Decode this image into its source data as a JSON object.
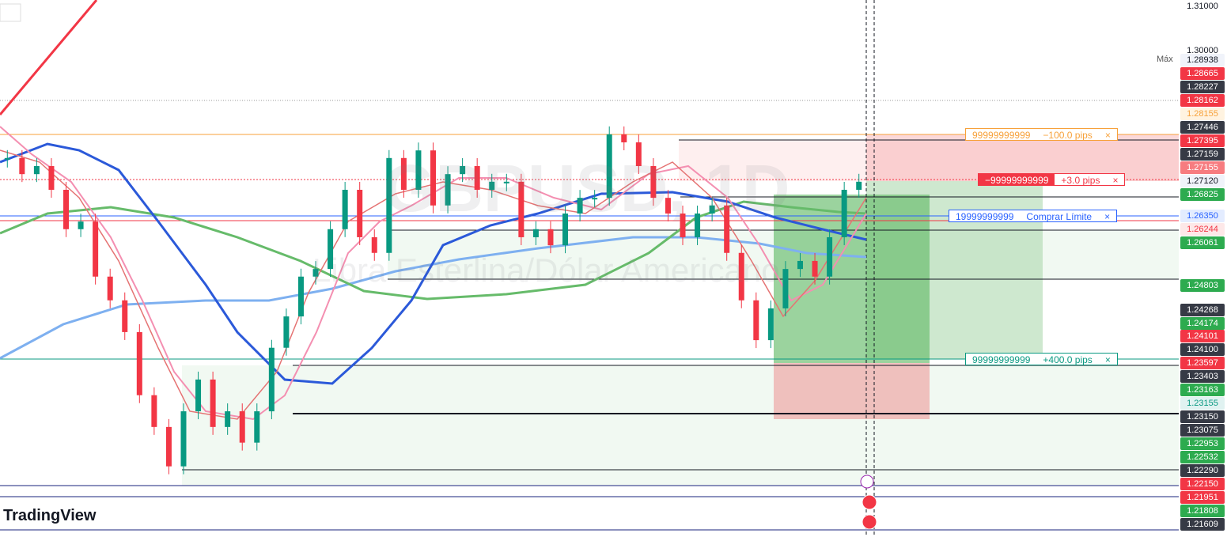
{
  "watermark": {
    "symbol": "GBPUSD, 1D",
    "description": "Libra Esterlina/Dólar Americano"
  },
  "logo": "TradingView",
  "max_caption": "Máx",
  "orders": [
    {
      "quantity": "99999999999",
      "pips": "−100.0 pips"
    },
    {
      "quantity": "−99999999999",
      "pips": "+3.0 pips"
    },
    {
      "quantity": "19999999999",
      "pips": "Comprar Límite"
    },
    {
      "quantity": "99999999999",
      "pips": "+400.0 pips"
    }
  ],
  "price_scale": [
    {
      "label": "1.31000",
      "bg": "#ffffff",
      "fg": "#131722"
    },
    {
      "label": "1.30000",
      "bg": "#ffffff",
      "fg": "#131722"
    },
    {
      "label": "1.28938",
      "bg": "#f0f3fa",
      "fg": "#131722"
    },
    {
      "label": "1.28665",
      "bg": "#f23645",
      "fg": "#ffffff"
    },
    {
      "label": "1.28227",
      "bg": "#363a45",
      "fg": "#ffffff"
    },
    {
      "label": "1.28162",
      "bg": "#f23645",
      "fg": "#ffffff"
    },
    {
      "label": "1.28155",
      "bg": "#fff3e0",
      "fg": "#f7a13a"
    },
    {
      "label": "1.27446",
      "bg": "#363a45",
      "fg": "#ffffff"
    },
    {
      "label": "1.27395",
      "bg": "#f23645",
      "fg": "#ffffff"
    },
    {
      "label": "1.27159",
      "bg": "#363a45",
      "fg": "#ffffff"
    },
    {
      "label": "1.27155",
      "bg": "#f77c80",
      "fg": "#ffffff"
    },
    {
      "label": "1.27120",
      "bg": "#f0f3fa",
      "fg": "#131722"
    },
    {
      "label": "1.26825",
      "bg": "#2dab4f",
      "fg": "#ffffff"
    },
    {
      "label": "1.26350",
      "bg": "#e3ecff",
      "fg": "#2962ff"
    },
    {
      "label": "1.26244",
      "bg": "#fde8e8",
      "fg": "#f23645"
    },
    {
      "label": "1.26061",
      "bg": "#2dab4f",
      "fg": "#ffffff"
    },
    {
      "label": "1.24803",
      "bg": "#2dab4f",
      "fg": "#ffffff"
    },
    {
      "label": "1.24268",
      "bg": "#363a45",
      "fg": "#ffffff"
    },
    {
      "label": "1.24174",
      "bg": "#2dab4f",
      "fg": "#ffffff"
    },
    {
      "label": "1.24101",
      "bg": "#f23645",
      "fg": "#ffffff"
    },
    {
      "label": "1.24100",
      "bg": "#363a45",
      "fg": "#ffffff"
    },
    {
      "label": "1.23597",
      "bg": "#f23645",
      "fg": "#ffffff"
    },
    {
      "label": "1.23403",
      "bg": "#363a45",
      "fg": "#ffffff"
    },
    {
      "label": "1.23163",
      "bg": "#2dab4f",
      "fg": "#ffffff"
    },
    {
      "label": "1.23155",
      "bg": "#e0f2f1",
      "fg": "#089981"
    },
    {
      "label": "1.23150",
      "bg": "#363a45",
      "fg": "#ffffff"
    },
    {
      "label": "1.23075",
      "bg": "#363a45",
      "fg": "#ffffff"
    },
    {
      "label": "1.22953",
      "bg": "#2dab4f",
      "fg": "#ffffff"
    },
    {
      "label": "1.22532",
      "bg": "#2dab4f",
      "fg": "#ffffff"
    },
    {
      "label": "1.22290",
      "bg": "#363a45",
      "fg": "#ffffff"
    },
    {
      "label": "1.22150",
      "bg": "#f23645",
      "fg": "#ffffff"
    },
    {
      "label": "1.21951",
      "bg": "#f23645",
      "fg": "#ffffff"
    },
    {
      "label": "1.21808",
      "bg": "#2dab4f",
      "fg": "#ffffff"
    },
    {
      "label": "1.21609",
      "bg": "#363a45",
      "fg": "#ffffff"
    }
  ],
  "candles": {
    "color_up": "#089981",
    "color_down": "#f23645",
    "ylim": [
      1.193,
      1.31
    ],
    "close": [
      1.2761,
      1.2725,
      1.2743,
      1.269,
      1.2602,
      1.2619,
      1.2496,
      1.2443,
      1.2372,
      1.2231,
      1.216,
      1.2072,
      1.2195,
      1.2266,
      1.216,
      1.2195,
      1.2125,
      1.2195,
      1.2337,
      1.2407,
      1.2496,
      1.2513,
      1.2602,
      1.269,
      1.2584,
      1.2549,
      1.2761,
      1.269,
      1.2778,
      1.2655,
      1.2725,
      1.2743,
      1.269,
      1.2708,
      1.2708,
      1.2584,
      1.2602,
      1.2566,
      1.2637,
      1.2672,
      1.2672,
      1.2814,
      1.2796,
      1.2743,
      1.2672,
      1.2637,
      1.2584,
      1.2637,
      1.2655,
      1.2549,
      1.2443,
      1.2354,
      1.2425,
      1.2513,
      1.2531,
      1.2496,
      1.2584,
      1.269,
      1.2708
    ]
  }
}
